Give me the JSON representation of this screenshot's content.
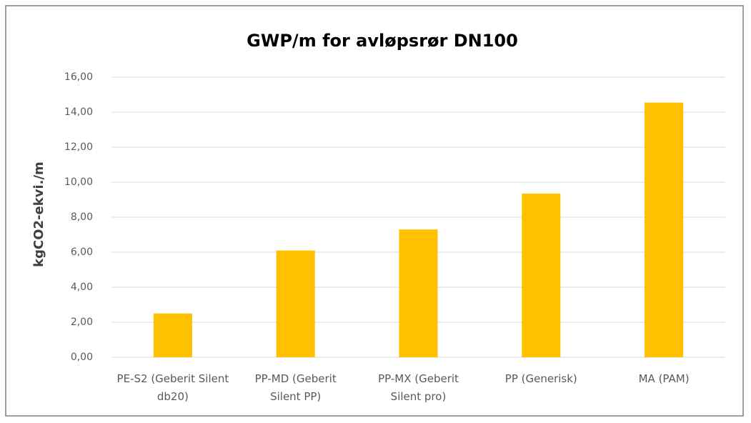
{
  "chart_data": {
    "type": "bar",
    "title": "GWP/m for avløpsrør DN100",
    "y_label": "kgCO2-ekvi./m",
    "categories": [
      "PE-S2 (Geberit Silent db20)",
      "PP-MD (Geberit Silent PP)",
      "PP-MX (Geberit Silent pro)",
      "PP (Generisk)",
      "MA (PAM)"
    ],
    "values": [
      2.5,
      6.1,
      7.3,
      9.35,
      14.55
    ],
    "color": "#ffc000",
    "ylim": [
      0,
      16
    ],
    "yticks": [
      {
        "value": 0,
        "label": "0,00"
      },
      {
        "value": 2,
        "label": "2,00"
      },
      {
        "value": 4,
        "label": "4,00"
      },
      {
        "value": 6,
        "label": "6,00"
      },
      {
        "value": 8,
        "label": "8,00"
      },
      {
        "value": 10,
        "label": "10,00"
      },
      {
        "value": 12,
        "label": "12,00"
      },
      {
        "value": 14,
        "label": "14,00"
      },
      {
        "value": 16,
        "label": "16,00"
      }
    ],
    "grid": true
  }
}
